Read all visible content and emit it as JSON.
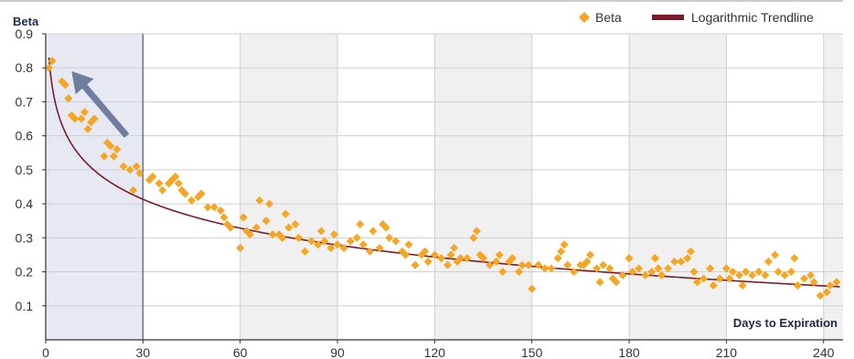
{
  "chart_data": {
    "type": "scatter",
    "title": "",
    "ylabel": "Beta",
    "xlabel": "Days to Expiration",
    "xlim": [
      0,
      246
    ],
    "ylim": [
      0,
      0.9
    ],
    "x_ticks": [
      0,
      30,
      60,
      90,
      120,
      150,
      180,
      210,
      240
    ],
    "y_ticks": [
      0.1,
      0.2,
      0.3,
      0.4,
      0.5,
      0.6,
      0.7,
      0.8,
      0.9
    ],
    "grid": true,
    "legend_position": "top-right",
    "highlighted_x_range": [
      0,
      30
    ],
    "arrow": {
      "from": [
        25,
        0.6
      ],
      "to": [
        8,
        0.79
      ]
    },
    "series": [
      {
        "name": "Beta",
        "marker": "diamond",
        "color": "#f5a623",
        "points": [
          [
            1,
            0.8
          ],
          [
            2,
            0.82
          ],
          [
            5,
            0.76
          ],
          [
            6,
            0.75
          ],
          [
            7,
            0.71
          ],
          [
            8,
            0.66
          ],
          [
            9,
            0.65
          ],
          [
            11,
            0.65
          ],
          [
            12,
            0.67
          ],
          [
            13,
            0.62
          ],
          [
            14,
            0.64
          ],
          [
            15,
            0.65
          ],
          [
            18,
            0.54
          ],
          [
            19,
            0.58
          ],
          [
            20,
            0.57
          ],
          [
            21,
            0.54
          ],
          [
            22,
            0.56
          ],
          [
            24,
            0.51
          ],
          [
            26,
            0.5
          ],
          [
            27,
            0.44
          ],
          [
            28,
            0.51
          ],
          [
            29,
            0.49
          ],
          [
            32,
            0.47
          ],
          [
            33,
            0.48
          ],
          [
            35,
            0.46
          ],
          [
            36,
            0.44
          ],
          [
            38,
            0.46
          ],
          [
            39,
            0.47
          ],
          [
            40,
            0.48
          ],
          [
            41,
            0.46
          ],
          [
            42,
            0.44
          ],
          [
            43,
            0.43
          ],
          [
            45,
            0.41
          ],
          [
            47,
            0.42
          ],
          [
            48,
            0.43
          ],
          [
            50,
            0.39
          ],
          [
            52,
            0.39
          ],
          [
            54,
            0.38
          ],
          [
            55,
            0.36
          ],
          [
            56,
            0.34
          ],
          [
            57,
            0.33
          ],
          [
            60,
            0.27
          ],
          [
            61,
            0.36
          ],
          [
            62,
            0.32
          ],
          [
            63,
            0.31
          ],
          [
            65,
            0.33
          ],
          [
            66,
            0.41
          ],
          [
            68,
            0.35
          ],
          [
            69,
            0.4
          ],
          [
            70,
            0.31
          ],
          [
            72,
            0.31
          ],
          [
            73,
            0.3
          ],
          [
            74,
            0.37
          ],
          [
            75,
            0.33
          ],
          [
            77,
            0.34
          ],
          [
            78,
            0.3
          ],
          [
            80,
            0.26
          ],
          [
            82,
            0.29
          ],
          [
            84,
            0.28
          ],
          [
            85,
            0.32
          ],
          [
            86,
            0.29
          ],
          [
            88,
            0.27
          ],
          [
            89,
            0.31
          ],
          [
            90,
            0.28
          ],
          [
            92,
            0.27
          ],
          [
            94,
            0.29
          ],
          [
            96,
            0.3
          ],
          [
            97,
            0.34
          ],
          [
            98,
            0.28
          ],
          [
            100,
            0.26
          ],
          [
            101,
            0.32
          ],
          [
            103,
            0.27
          ],
          [
            104,
            0.34
          ],
          [
            105,
            0.33
          ],
          [
            106,
            0.3
          ],
          [
            108,
            0.29
          ],
          [
            110,
            0.26
          ],
          [
            111,
            0.25
          ],
          [
            112,
            0.28
          ],
          [
            114,
            0.22
          ],
          [
            116,
            0.25
          ],
          [
            117,
            0.26
          ],
          [
            118,
            0.23
          ],
          [
            120,
            0.25
          ],
          [
            122,
            0.24
          ],
          [
            124,
            0.22
          ],
          [
            125,
            0.25
          ],
          [
            126,
            0.27
          ],
          [
            127,
            0.23
          ],
          [
            128,
            0.24
          ],
          [
            130,
            0.24
          ],
          [
            132,
            0.3
          ],
          [
            133,
            0.32
          ],
          [
            134,
            0.25
          ],
          [
            135,
            0.24
          ],
          [
            137,
            0.22
          ],
          [
            139,
            0.23
          ],
          [
            140,
            0.25
          ],
          [
            141,
            0.2
          ],
          [
            143,
            0.23
          ],
          [
            144,
            0.24
          ],
          [
            146,
            0.2
          ],
          [
            147,
            0.22
          ],
          [
            149,
            0.22
          ],
          [
            150,
            0.15
          ],
          [
            152,
            0.22
          ],
          [
            154,
            0.21
          ],
          [
            156,
            0.21
          ],
          [
            158,
            0.24
          ],
          [
            159,
            0.26
          ],
          [
            160,
            0.28
          ],
          [
            161,
            0.22
          ],
          [
            163,
            0.2
          ],
          [
            165,
            0.22
          ],
          [
            166,
            0.22
          ],
          [
            167,
            0.23
          ],
          [
            168,
            0.25
          ],
          [
            170,
            0.21
          ],
          [
            171,
            0.17
          ],
          [
            172,
            0.22
          ],
          [
            174,
            0.21
          ],
          [
            175,
            0.18
          ],
          [
            176,
            0.17
          ],
          [
            178,
            0.19
          ],
          [
            180,
            0.24
          ],
          [
            181,
            0.2
          ],
          [
            183,
            0.21
          ],
          [
            185,
            0.19
          ],
          [
            187,
            0.2
          ],
          [
            188,
            0.24
          ],
          [
            189,
            0.21
          ],
          [
            190,
            0.19
          ],
          [
            192,
            0.21
          ],
          [
            194,
            0.23
          ],
          [
            196,
            0.23
          ],
          [
            198,
            0.24
          ],
          [
            199,
            0.26
          ],
          [
            200,
            0.2
          ],
          [
            201,
            0.17
          ],
          [
            203,
            0.18
          ],
          [
            205,
            0.21
          ],
          [
            206,
            0.16
          ],
          [
            208,
            0.18
          ],
          [
            210,
            0.21
          ],
          [
            211,
            0.18
          ],
          [
            212,
            0.2
          ],
          [
            214,
            0.19
          ],
          [
            215,
            0.16
          ],
          [
            216,
            0.2
          ],
          [
            218,
            0.19
          ],
          [
            220,
            0.2
          ],
          [
            222,
            0.19
          ],
          [
            223,
            0.23
          ],
          [
            225,
            0.25
          ],
          [
            226,
            0.2
          ],
          [
            228,
            0.19
          ],
          [
            230,
            0.2
          ],
          [
            231,
            0.24
          ],
          [
            232,
            0.16
          ],
          [
            234,
            0.18
          ],
          [
            236,
            0.19
          ],
          [
            237,
            0.17
          ],
          [
            239,
            0.13
          ],
          [
            241,
            0.14
          ],
          [
            242,
            0.16
          ],
          [
            244,
            0.17
          ]
        ]
      },
      {
        "name": "Logarithmic Trendline",
        "type": "line",
        "color": "#7b1b2a",
        "equation": "y = 0.83 - 0.1225 * ln(x)"
      }
    ]
  }
}
